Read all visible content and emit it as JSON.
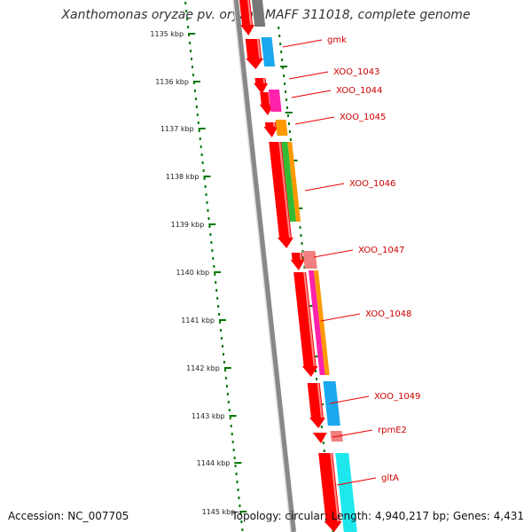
{
  "title": "Xanthomonas oryzae pv. oryzae MAFF 311018, complete genome",
  "footer": {
    "accession": "Accession: NC_007705",
    "summary": "Topology: circular; Length: 4,940,217 bp; Genes: 4,431"
  },
  "ruler": [
    "1135 kbp",
    "1136 kbp",
    "1137 kbp",
    "1138 kbp",
    "1139 kbp",
    "1140 kbp",
    "1141 kbp",
    "1142 kbp",
    "1143 kbp",
    "1144 kbp",
    "1145 kbp"
  ],
  "colors": {
    "cds": "#ff0000",
    "label": "#cc0000",
    "leader": "#ee0000",
    "ruler": "#007700",
    "backbone": "#888888",
    "blue": "#1aa8ee",
    "magenta": "#ff22aa",
    "orange": "#ff9900",
    "green": "#33bb33",
    "salmon": "#f08080",
    "cyan": "#1ee8ee",
    "gray": "#777777"
  },
  "genes": [
    {
      "name": "gmk",
      "color": "blue"
    },
    {
      "name": "XOO_1043",
      "color": "none"
    },
    {
      "name": "XOO_1044",
      "color": "magenta"
    },
    {
      "name": "XOO_1045",
      "color": "orange"
    },
    {
      "name": "XOO_1046",
      "color": "green+orange"
    },
    {
      "name": "XOO_1047",
      "color": "salmon"
    },
    {
      "name": "XOO_1048",
      "color": "magenta+orange"
    },
    {
      "name": "XOO_1049",
      "color": "blue"
    },
    {
      "name": "rpmE2",
      "color": "salmon"
    },
    {
      "name": "gltA",
      "color": "cyan"
    }
  ]
}
